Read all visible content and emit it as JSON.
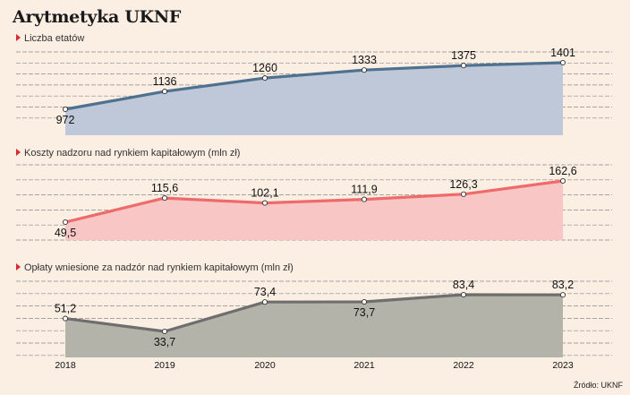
{
  "title": "Arytmetyka UKNF",
  "source": "Źródło: UKNF",
  "chart_data": {
    "type": "area",
    "categories": [
      "2018",
      "2019",
      "2020",
      "2021",
      "2022",
      "2023"
    ],
    "grid": true,
    "panels": [
      {
        "title": "Liczba etatów",
        "values": [
          972,
          1136,
          1260,
          1333,
          1375,
          1401
        ],
        "labels": [
          "972",
          "1136",
          "1260",
          "1333",
          "1375",
          "1401"
        ],
        "line_color": "#4e7190",
        "fill_color": "#bfc8d9"
      },
      {
        "title": "Koszty nadzoru nad rynkiem kapitałowym (mln zł)",
        "values": [
          49.5,
          115.6,
          102.1,
          111.9,
          126.3,
          162.6
        ],
        "labels": [
          "49,5",
          "115,6",
          "102,1",
          "111,9",
          "126,3",
          "162,6"
        ],
        "line_color": "#ef6b6b",
        "fill_color": "#f9c6c6"
      },
      {
        "title": "Opłaty wniesione za nadzór nad rynkiem kapitałowym (mln zł)",
        "values": [
          51.2,
          33.7,
          73.4,
          73.7,
          83.4,
          83.2
        ],
        "labels": [
          "51,2",
          "33,7",
          "73,4",
          "73,7",
          "83,4",
          "83,2"
        ],
        "line_color": "#6e6e6e",
        "fill_color": "#b4b3a9"
      }
    ]
  }
}
